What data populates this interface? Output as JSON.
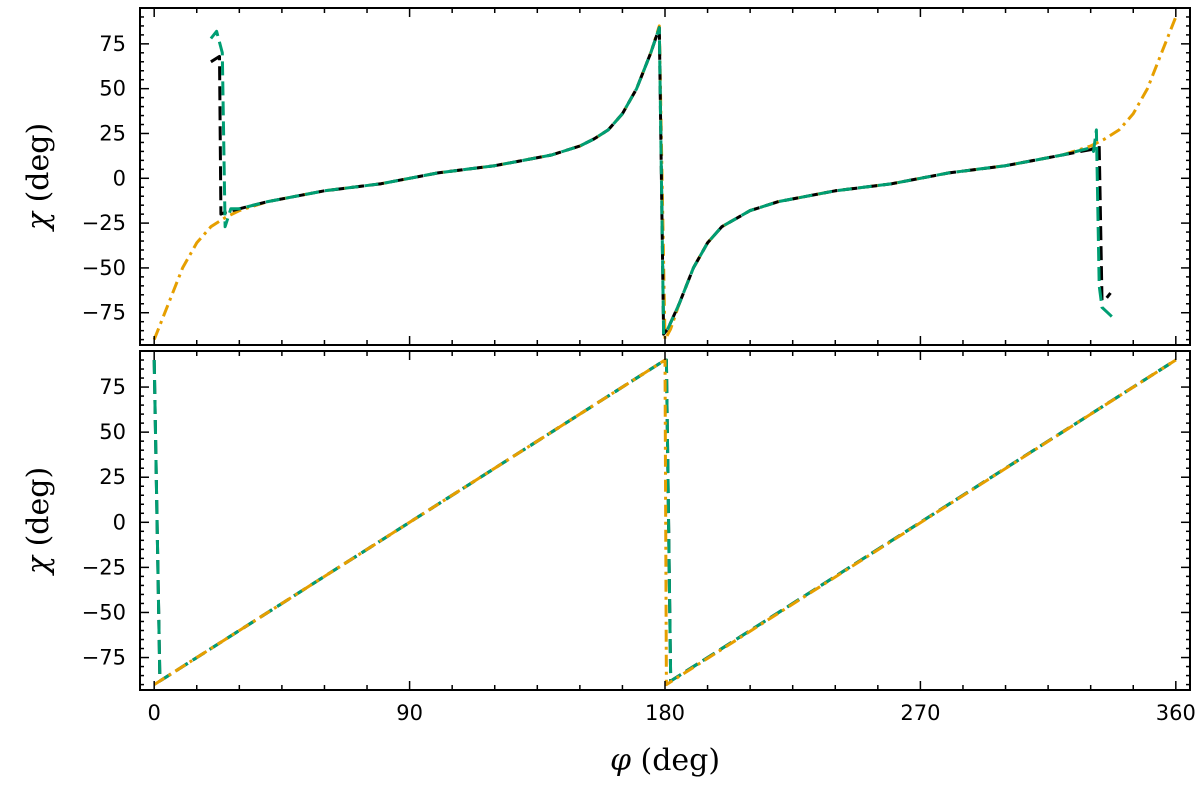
{
  "chart_data": [
    {
      "type": "line",
      "panel": "top",
      "ylabel_symbol": "χ",
      "ylabel_unit": "(deg)",
      "xlabel_symbol": "",
      "xlabel_unit": "",
      "xlim": [
        -5,
        365
      ],
      "ylim": [
        -93,
        95
      ],
      "xticks": [
        0,
        90,
        180,
        270,
        360
      ],
      "xtick_labels": [
        "",
        "",
        "",
        "",
        ""
      ],
      "yticks": [
        -75,
        -50,
        -25,
        0,
        25,
        50,
        75
      ],
      "ytick_labels": [
        "−75",
        "−50",
        "−25",
        "0",
        "25",
        "50",
        "75"
      ],
      "grid": false,
      "series": [
        {
          "color": "#e69f00",
          "dash": "dashdot",
          "x": [
            0,
            5,
            10,
            15,
            20,
            25,
            30,
            40,
            50,
            60,
            70,
            80,
            90,
            100,
            110,
            120,
            130,
            140,
            150,
            155,
            160,
            165,
            170,
            175,
            178,
            180,
            182,
            185,
            190,
            195,
            200,
            210,
            220,
            230,
            240,
            250,
            260,
            270,
            280,
            290,
            300,
            310,
            320,
            330,
            335,
            340,
            345,
            350,
            355,
            360
          ],
          "y": [
            -90,
            -70,
            -50,
            -36,
            -27,
            -22,
            -18,
            -13,
            -10,
            -7,
            -5,
            -3,
            0,
            3,
            5,
            7,
            10,
            13,
            18,
            22,
            27,
            36,
            50,
            70,
            85,
            -90,
            -84,
            -70,
            -50,
            -36,
            -27,
            -18,
            -13,
            -10,
            -7,
            -5,
            -3,
            0,
            3,
            5,
            7,
            10,
            13,
            18,
            22,
            27,
            36,
            50,
            70,
            90
          ]
        },
        {
          "color": "#000000",
          "dash": "dashed",
          "x": [
            20,
            23,
            23.5,
            25,
            30,
            40,
            50,
            60,
            70,
            80,
            90,
            100,
            110,
            120,
            130,
            140,
            150,
            155,
            160,
            165,
            170,
            175,
            178,
            179.5,
            181,
            185,
            190,
            195,
            200,
            210,
            220,
            230,
            240,
            250,
            260,
            270,
            280,
            290,
            300,
            310,
            320,
            330,
            333,
            334,
            335,
            337
          ],
          "y": [
            65,
            68,
            -20,
            -19,
            -17,
            -13,
            -10,
            -7,
            -5,
            -3,
            0,
            3,
            5,
            7,
            10,
            13,
            18,
            22,
            27,
            36,
            50,
            70,
            84,
            -87,
            -84,
            -70,
            -50,
            -36,
            -27,
            -18,
            -13,
            -10,
            -7,
            -5,
            -3,
            0,
            3,
            5,
            7,
            10,
            13,
            16,
            18,
            -68,
            -68,
            -64
          ]
        },
        {
          "color": "#009e73",
          "dash": "dashed",
          "x": [
            20,
            22,
            24,
            25,
            26,
            27,
            30,
            40,
            50,
            60,
            70,
            80,
            90,
            100,
            110,
            120,
            130,
            140,
            150,
            155,
            160,
            165,
            170,
            175,
            178,
            179.5,
            181,
            185,
            190,
            195,
            200,
            210,
            220,
            230,
            240,
            250,
            260,
            270,
            280,
            290,
            300,
            310,
            320,
            330,
            331,
            332,
            333,
            334,
            336,
            338
          ],
          "y": [
            78,
            82,
            70,
            -27,
            -22,
            -17,
            -17,
            -13,
            -10,
            -7,
            -5,
            -3,
            0,
            3,
            5,
            7,
            10,
            13,
            18,
            22,
            27,
            36,
            50,
            70,
            84,
            -87,
            -84,
            -70,
            -50,
            -36,
            -27,
            -18,
            -13,
            -10,
            -7,
            -5,
            -3,
            0,
            3,
            5,
            7,
            10,
            13,
            17,
            15,
            27,
            -60,
            -72,
            -75,
            -78
          ]
        }
      ]
    },
    {
      "type": "line",
      "panel": "bottom",
      "ylabel_symbol": "χ",
      "ylabel_unit": "(deg)",
      "xlabel_symbol": "φ",
      "xlabel_unit": "(deg)",
      "xlim": [
        -5,
        365
      ],
      "ylim": [
        -93,
        95
      ],
      "xticks": [
        0,
        90,
        180,
        270,
        360
      ],
      "xtick_labels": [
        "0",
        "90",
        "180",
        "270",
        "360"
      ],
      "yticks": [
        -75,
        -50,
        -25,
        0,
        25,
        50,
        75
      ],
      "ytick_labels": [
        "−75",
        "−50",
        "−25",
        "0",
        "25",
        "50",
        "75"
      ],
      "grid": false,
      "series": [
        {
          "color": "#000000",
          "dash": "dashed",
          "x": [
            0,
            2,
            180,
            180.5,
            182,
            360
          ],
          "y": [
            90,
            -88,
            90,
            90,
            -88,
            90
          ]
        },
        {
          "color": "#009e73",
          "dash": "dashed",
          "x": [
            0,
            2,
            180,
            180.5,
            182,
            360
          ],
          "y": [
            90,
            -88,
            90,
            90,
            -88,
            90
          ]
        },
        {
          "color": "#e69f00",
          "dash": "dashdot",
          "x": [
            0,
            180,
            180.5,
            360
          ],
          "y": [
            -90,
            90,
            -90,
            90
          ]
        }
      ]
    }
  ]
}
